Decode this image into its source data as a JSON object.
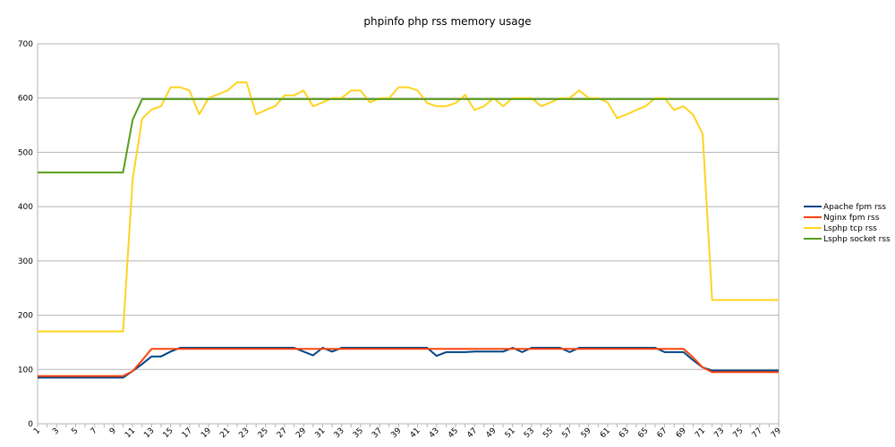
{
  "chart_data": {
    "type": "line",
    "title": "phpinfo php rss memory usage",
    "xlabel": "",
    "ylabel": "",
    "ylim": [
      0,
      700
    ],
    "yticks": [
      0,
      100,
      200,
      300,
      400,
      500,
      600,
      700
    ],
    "x": [
      1,
      2,
      3,
      4,
      5,
      6,
      7,
      8,
      9,
      10,
      11,
      12,
      13,
      14,
      15,
      16,
      17,
      18,
      19,
      20,
      21,
      22,
      23,
      24,
      25,
      26,
      27,
      28,
      29,
      30,
      31,
      32,
      33,
      34,
      35,
      36,
      37,
      38,
      39,
      40,
      41,
      42,
      43,
      44,
      45,
      46,
      47,
      48,
      49,
      50,
      51,
      52,
      53,
      54,
      55,
      56,
      57,
      58,
      59,
      60,
      61,
      62,
      63,
      64,
      65,
      66,
      67,
      68,
      69,
      70,
      71,
      72,
      73,
      74,
      75,
      76,
      77,
      78,
      79
    ],
    "x_tick_labels_shown": "odd",
    "grid": "horizontal",
    "legend_position": "right",
    "series": [
      {
        "name": "Apache fpm rss",
        "color": "#004586",
        "values": [
          85,
          85,
          85,
          85,
          85,
          85,
          85,
          85,
          85,
          85,
          97,
          110,
          124,
          124,
          133,
          140,
          140,
          140,
          140,
          140,
          140,
          140,
          140,
          140,
          140,
          140,
          140,
          140,
          133,
          126,
          140,
          133,
          140,
          140,
          140,
          140,
          140,
          140,
          140,
          140,
          140,
          140,
          125,
          132,
          132,
          132,
          133,
          133,
          133,
          133,
          140,
          132,
          140,
          140,
          140,
          140,
          132,
          140,
          140,
          140,
          140,
          140,
          140,
          140,
          140,
          140,
          132,
          132,
          132,
          117,
          104,
          98,
          98,
          98,
          98,
          98,
          98,
          98,
          98
        ]
      },
      {
        "name": "Nginx fpm rss",
        "color": "#ff420e",
        "values": [
          88,
          88,
          88,
          88,
          88,
          88,
          88,
          88,
          88,
          88,
          97,
          117,
          138,
          138,
          138,
          138,
          138,
          138,
          138,
          138,
          138,
          138,
          138,
          138,
          138,
          138,
          138,
          138,
          138,
          138,
          138,
          138,
          138,
          138,
          138,
          138,
          138,
          138,
          138,
          138,
          138,
          138,
          138,
          138,
          138,
          138,
          138,
          138,
          138,
          138,
          138,
          138,
          138,
          138,
          138,
          138,
          138,
          138,
          138,
          138,
          138,
          138,
          138,
          138,
          138,
          138,
          138,
          138,
          138,
          122,
          104,
          95,
          95,
          95,
          95,
          95,
          95,
          95,
          95
        ]
      },
      {
        "name": "Lsphp tcp rss",
        "color": "#ffd320",
        "values": [
          170,
          170,
          170,
          170,
          170,
          170,
          170,
          170,
          170,
          170,
          450,
          562,
          579,
          585,
          620,
          620,
          614,
          570,
          600,
          607,
          614,
          629,
          629,
          570,
          578,
          585,
          605,
          605,
          614,
          585,
          592,
          600,
          600,
          614,
          614,
          592,
          600,
          600,
          620,
          620,
          614,
          591,
          585,
          585,
          591,
          606,
          578,
          585,
          600,
          585,
          600,
          600,
          600,
          585,
          592,
          600,
          600,
          614,
          600,
          600,
          592,
          563,
          570,
          578,
          585,
          600,
          600,
          578,
          585,
          569,
          534,
          228,
          228,
          228,
          228,
          228,
          228,
          228,
          228
        ]
      },
      {
        "name": "Lsphp socket rss",
        "color": "#579d1c",
        "values": [
          463,
          463,
          463,
          463,
          463,
          463,
          463,
          463,
          463,
          463,
          560,
          598,
          598,
          598,
          598,
          598,
          598,
          598,
          598,
          598,
          598,
          598,
          598,
          598,
          598,
          598,
          598,
          598,
          598,
          598,
          598,
          598,
          598,
          598,
          598,
          598,
          598,
          598,
          598,
          598,
          598,
          598,
          598,
          598,
          598,
          598,
          598,
          598,
          598,
          598,
          598,
          598,
          598,
          598,
          598,
          598,
          598,
          598,
          598,
          598,
          598,
          598,
          598,
          598,
          598,
          598,
          598,
          598,
          598,
          598,
          598,
          598,
          598,
          598,
          598,
          598,
          598,
          598,
          598
        ]
      }
    ]
  }
}
